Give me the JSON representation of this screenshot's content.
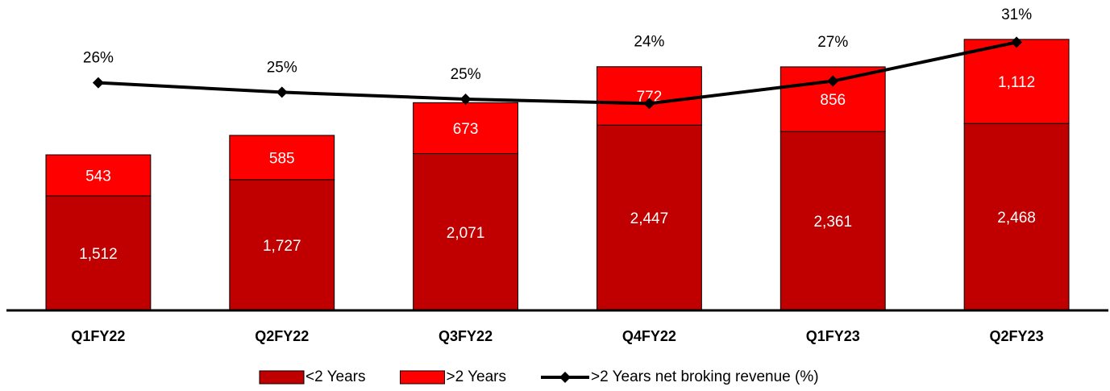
{
  "chart_data": {
    "type": "bar",
    "stacked": true,
    "categories": [
      "Q1FY22",
      "Q2FY22",
      "Q3FY22",
      "Q4FY22",
      "Q1FY23",
      "Q2FY23"
    ],
    "series": [
      {
        "name": "<2 Years",
        "color": "#c00000",
        "values": [
          1512,
          1727,
          2071,
          2447,
          2361,
          2468
        ]
      },
      {
        "name": ">2 Years",
        "color": "#ff0000",
        "values": [
          543,
          585,
          673,
          772,
          856,
          1112
        ]
      },
      {
        "name": ">2 Years net broking revenue (%)",
        "type": "line",
        "axis": "y2",
        "color": "#000000",
        "values": [
          26.4,
          25.3,
          24.5,
          24.0,
          26.6,
          31.1
        ],
        "value_labels": [
          "26%",
          "25%",
          "25%",
          "24%",
          "27%",
          "31%"
        ]
      }
    ],
    "value_labels": [
      [
        "1,512",
        "1,727",
        "2,071",
        "2,447",
        "2,361",
        "2,468"
      ],
      [
        "543",
        "585",
        "673",
        "772",
        "856",
        "1,112"
      ]
    ],
    "ylim": [
      0,
      4100
    ],
    "y2lim": [
      0,
      36
    ]
  }
}
